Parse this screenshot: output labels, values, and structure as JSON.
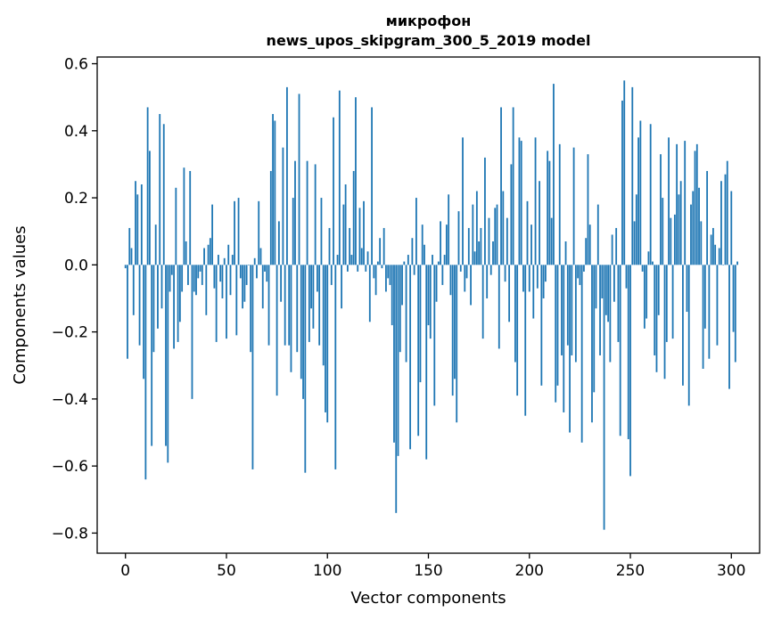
{
  "chart_data": {
    "type": "bar",
    "title_line1": "микрофон",
    "title_line2": "news_upos_skipgram_300_5_2019 model",
    "xlabel": "Vector components",
    "ylabel": "Components values",
    "xlim": [
      -14,
      314
    ],
    "ylim": [
      -0.86,
      0.62
    ],
    "x_ticks": [
      0,
      50,
      100,
      150,
      200,
      250,
      300
    ],
    "x_tick_labels": [
      "0",
      "50",
      "100",
      "150",
      "200",
      "250",
      "300"
    ],
    "y_ticks": [
      -0.8,
      -0.6,
      -0.4,
      -0.2,
      0.0,
      0.2,
      0.4,
      0.6
    ],
    "y_tick_labels": [
      "−0.8",
      "−0.6",
      "−0.4",
      "−0.2",
      "0.0",
      "0.2",
      "0.4",
      "0.6"
    ],
    "bar_color": "#1f77b4",
    "grid": false,
    "legend": "none",
    "values": [
      -0.01,
      -0.28,
      0.11,
      0.05,
      -0.15,
      0.25,
      0.21,
      -0.24,
      0.24,
      -0.34,
      -0.64,
      0.47,
      0.34,
      -0.54,
      -0.26,
      0.12,
      -0.19,
      0.45,
      -0.13,
      0.42,
      -0.54,
      -0.59,
      -0.08,
      -0.03,
      -0.25,
      0.23,
      -0.23,
      -0.17,
      -0.08,
      0.29,
      0.07,
      -0.06,
      0.28,
      -0.4,
      -0.08,
      -0.09,
      -0.04,
      -0.02,
      -0.06,
      0.05,
      -0.15,
      0.06,
      0.08,
      0.18,
      -0.07,
      -0.23,
      0.03,
      -0.05,
      -0.1,
      0.02,
      -0.22,
      0.06,
      -0.09,
      0.03,
      0.19,
      -0.21,
      0.2,
      -0.04,
      -0.13,
      -0.11,
      -0.06,
      0.0,
      -0.26,
      -0.61,
      0.02,
      -0.04,
      0.19,
      0.05,
      -0.13,
      -0.02,
      -0.05,
      -0.24,
      0.28,
      0.45,
      0.43,
      -0.39,
      0.13,
      -0.11,
      0.35,
      -0.24,
      0.53,
      -0.24,
      -0.32,
      0.2,
      0.31,
      -0.26,
      0.51,
      -0.34,
      -0.4,
      -0.62,
      0.31,
      -0.23,
      -0.13,
      -0.19,
      0.3,
      -0.08,
      -0.24,
      0.2,
      -0.3,
      -0.44,
      -0.47,
      0.11,
      -0.06,
      0.44,
      -0.61,
      0.03,
      0.52,
      -0.13,
      0.18,
      0.24,
      -0.02,
      0.11,
      0.03,
      0.28,
      0.5,
      -0.02,
      0.17,
      0.05,
      0.19,
      -0.02,
      0.04,
      -0.17,
      0.47,
      -0.04,
      -0.09,
      0.01,
      0.08,
      -0.01,
      0.11,
      -0.08,
      -0.04,
      -0.06,
      -0.18,
      -0.53,
      -0.74,
      -0.57,
      -0.26,
      -0.12,
      0.01,
      -0.29,
      0.03,
      -0.55,
      0.08,
      -0.03,
      0.2,
      -0.51,
      -0.35,
      0.12,
      0.06,
      -0.58,
      -0.18,
      -0.22,
      0.03,
      -0.42,
      -0.11,
      0.01,
      0.13,
      -0.06,
      0.03,
      0.12,
      0.21,
      -0.09,
      -0.39,
      -0.34,
      -0.47,
      0.16,
      -0.02,
      0.38,
      -0.08,
      -0.04,
      0.11,
      -0.12,
      0.18,
      0.04,
      0.22,
      0.07,
      0.11,
      -0.22,
      0.32,
      -0.1,
      0.14,
      -0.03,
      0.07,
      0.17,
      0.18,
      -0.25,
      0.47,
      0.22,
      -0.05,
      0.14,
      -0.17,
      0.3,
      0.47,
      -0.29,
      -0.39,
      0.38,
      0.37,
      -0.08,
      -0.45,
      0.19,
      -0.08,
      0.12,
      -0.16,
      0.38,
      -0.07,
      0.25,
      -0.36,
      -0.1,
      -0.05,
      0.34,
      0.31,
      0.14,
      0.54,
      -0.41,
      -0.36,
      0.36,
      -0.27,
      -0.44,
      0.07,
      -0.24,
      -0.5,
      -0.27,
      0.35,
      -0.29,
      -0.04,
      -0.06,
      -0.53,
      -0.02,
      0.08,
      0.33,
      0.12,
      -0.47,
      -0.38,
      -0.13,
      0.18,
      -0.27,
      -0.1,
      -0.79,
      -0.15,
      -0.17,
      -0.29,
      0.09,
      -0.11,
      0.11,
      -0.23,
      -0.51,
      0.49,
      0.55,
      -0.07,
      -0.52,
      -0.63,
      0.53,
      0.13,
      0.21,
      0.38,
      0.43,
      -0.02,
      -0.19,
      -0.16,
      0.04,
      0.42,
      0.01,
      -0.27,
      -0.32,
      -0.15,
      0.33,
      0.2,
      -0.34,
      -0.23,
      0.38,
      0.14,
      -0.22,
      0.15,
      0.36,
      0.21,
      0.25,
      -0.36,
      0.37,
      -0.14,
      -0.42,
      0.18,
      0.22,
      0.34,
      0.36,
      0.23,
      0.13,
      -0.31,
      -0.19,
      0.28,
      -0.28,
      0.09,
      0.11,
      0.06,
      -0.24,
      0.05,
      0.25,
      0.0,
      0.27,
      0.31,
      -0.37,
      0.22,
      -0.2,
      -0.29,
      0.01
    ]
  }
}
